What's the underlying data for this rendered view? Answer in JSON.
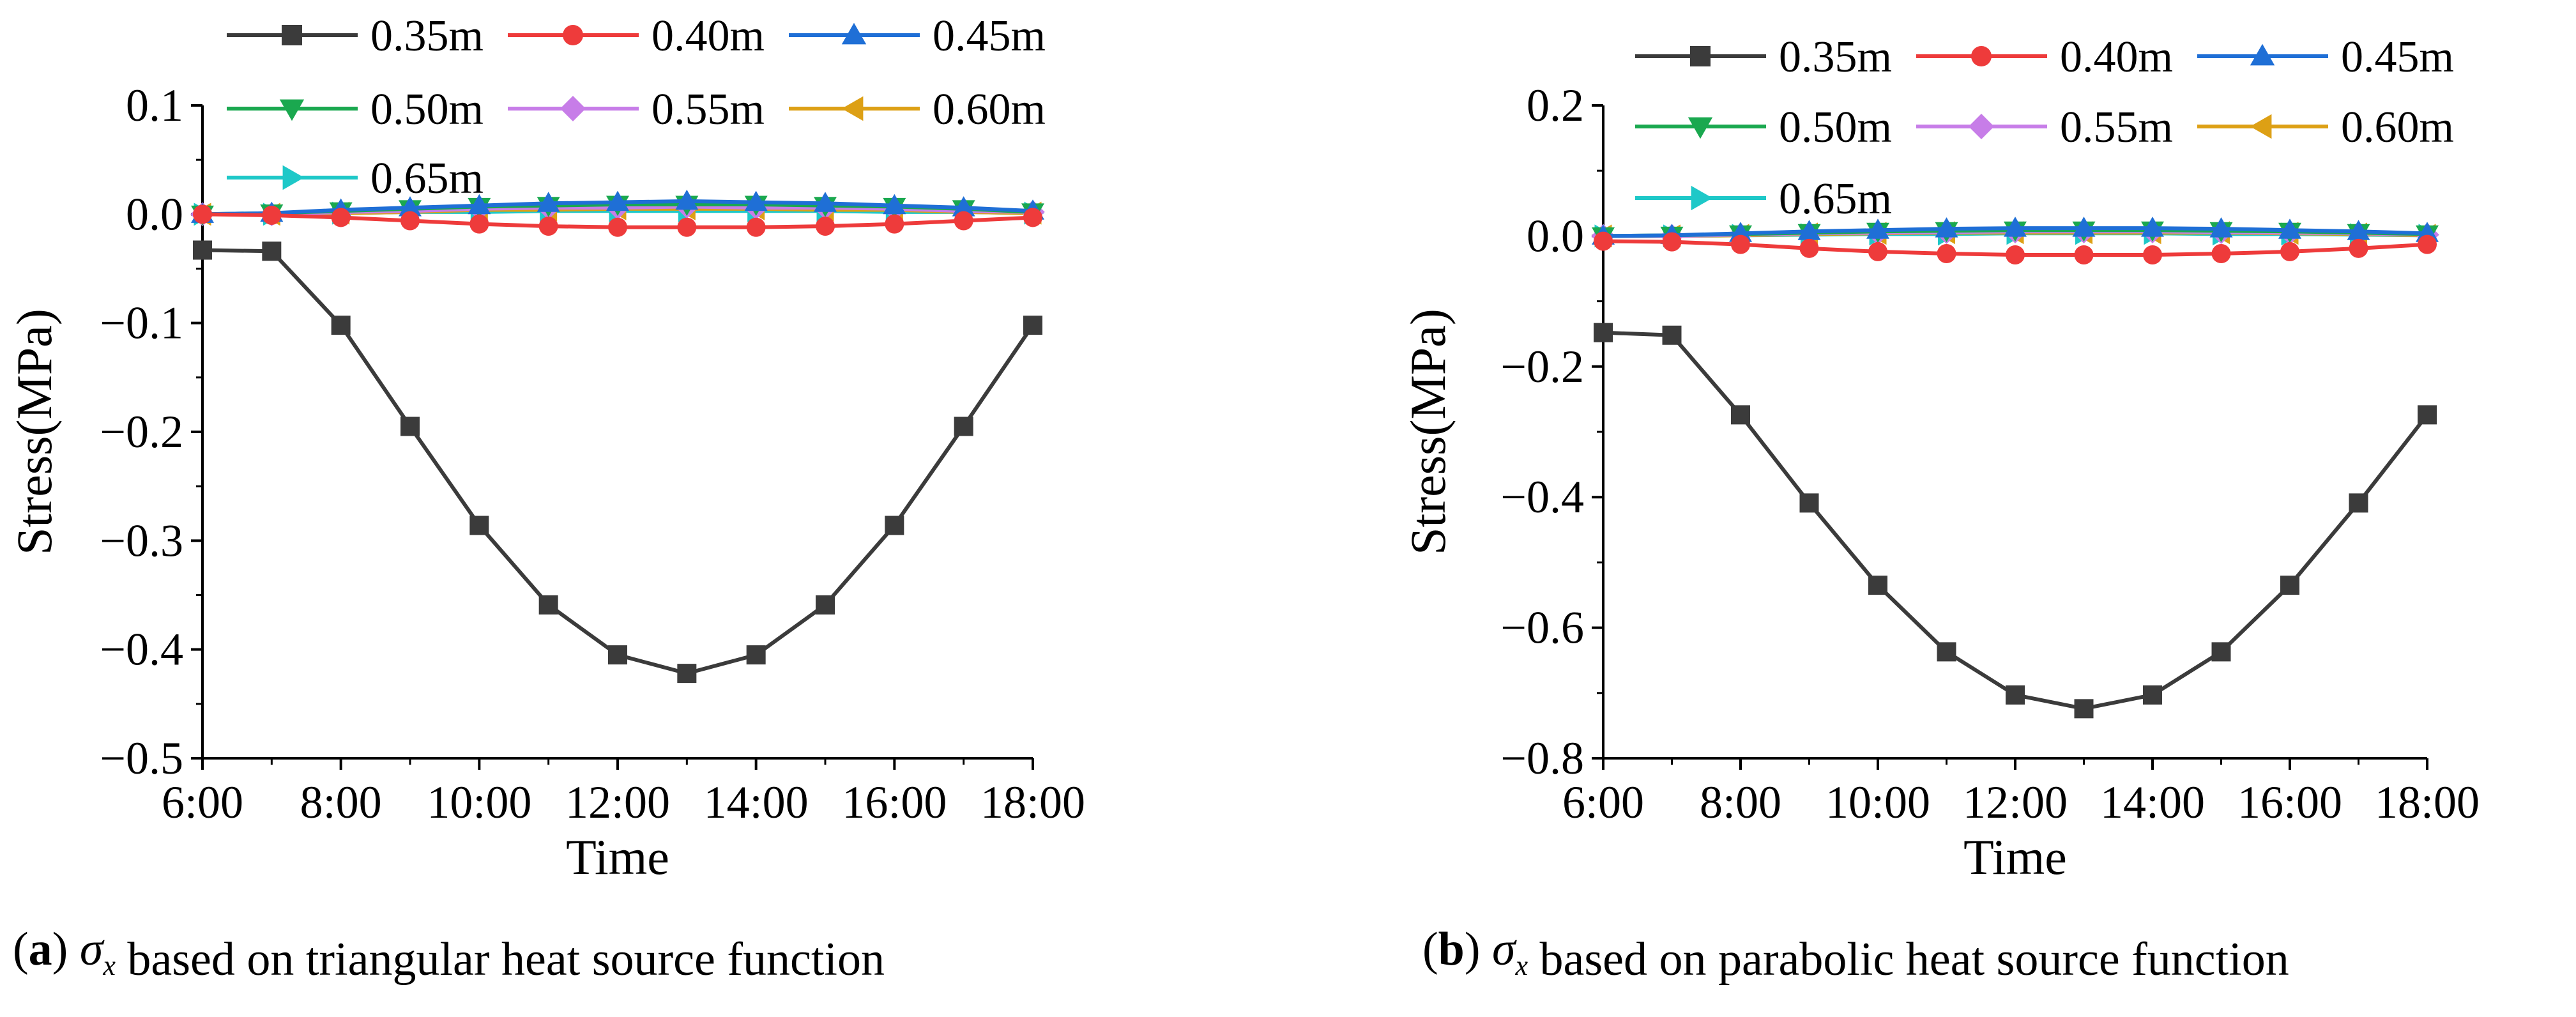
{
  "chart_data": [
    {
      "type": "line",
      "panel_id": "a",
      "caption": {
        "letter": "a",
        "symbol": "σ",
        "subscript": "x",
        "text": "based on triangular heat source function"
      },
      "xlabel": "Time",
      "ylabel": "Stress(MPa)",
      "x": [
        6,
        7,
        8,
        9,
        10,
        11,
        12,
        13,
        14,
        15,
        16,
        17,
        18
      ],
      "xticks": [
        6,
        8,
        10,
        12,
        14,
        16,
        18
      ],
      "xtick_labels": [
        "6:00",
        "8:00",
        "10:00",
        "12:00",
        "14:00",
        "16:00",
        "18:00"
      ],
      "xlim": [
        6,
        18
      ],
      "yticks": [
        0.1,
        0.0,
        -0.1,
        -0.2,
        -0.3,
        -0.4,
        -0.5
      ],
      "ytick_labels": [
        "0.1",
        "0.0",
        "−0.1",
        "−0.2",
        "−0.3",
        "−0.4",
        "−0.5"
      ],
      "ylim": [
        -0.5,
        0.1
      ],
      "series": [
        {
          "name": "0.35m",
          "color": "#3b3b3b",
          "marker": "square",
          "values": [
            -0.033,
            -0.034,
            -0.102,
            -0.195,
            -0.286,
            -0.359,
            -0.405,
            -0.422,
            -0.405,
            -0.359,
            -0.286,
            -0.195,
            -0.102
          ]
        },
        {
          "name": "0.40m",
          "color": "#ee3b3b",
          "marker": "circle",
          "values": [
            0.0,
            -0.001,
            -0.003,
            -0.006,
            -0.009,
            -0.011,
            -0.012,
            -0.012,
            -0.012,
            -0.011,
            -0.009,
            -0.006,
            -0.003
          ]
        },
        {
          "name": "0.45m",
          "color": "#1f6fd6",
          "marker": "triangle-up",
          "values": [
            0.0,
            0.001,
            0.004,
            0.006,
            0.008,
            0.01,
            0.011,
            0.012,
            0.011,
            0.01,
            0.008,
            0.006,
            0.003
          ]
        },
        {
          "name": "0.50m",
          "color": "#1aa84f",
          "marker": "triangle-down",
          "values": [
            0.0,
            0.001,
            0.003,
            0.005,
            0.007,
            0.008,
            0.009,
            0.009,
            0.009,
            0.008,
            0.007,
            0.005,
            0.002
          ]
        },
        {
          "name": "0.55m",
          "color": "#c77de8",
          "marker": "diamond",
          "values": [
            0.0,
            0.0,
            0.002,
            0.003,
            0.005,
            0.006,
            0.006,
            0.007,
            0.006,
            0.006,
            0.005,
            0.003,
            0.002
          ]
        },
        {
          "name": "0.60m",
          "color": "#dda015",
          "marker": "triangle-left",
          "values": [
            0.0,
            0.0,
            0.001,
            0.002,
            0.004,
            0.004,
            0.005,
            0.005,
            0.005,
            0.004,
            0.004,
            0.002,
            0.001
          ]
        },
        {
          "name": "0.65m",
          "color": "#1ec8c8",
          "marker": "triangle-right",
          "values": [
            0.0,
            0.0,
            0.001,
            0.002,
            0.002,
            0.003,
            0.003,
            0.003,
            0.003,
            0.003,
            0.002,
            0.002,
            0.001
          ]
        }
      ]
    },
    {
      "type": "line",
      "panel_id": "b",
      "caption": {
        "letter": "b",
        "symbol": "σ",
        "subscript": "x",
        "text": "based on parabolic heat source function"
      },
      "xlabel": "Time",
      "ylabel": "Stress(MPa)",
      "x": [
        6,
        7,
        8,
        9,
        10,
        11,
        12,
        13,
        14,
        15,
        16,
        17,
        18
      ],
      "xticks": [
        6,
        8,
        10,
        12,
        14,
        16,
        18
      ],
      "xtick_labels": [
        "6:00",
        "8:00",
        "10:00",
        "12:00",
        "14:00",
        "16:00",
        "18:00"
      ],
      "xlim": [
        6,
        18
      ],
      "yticks": [
        0.2,
        0.0,
        -0.2,
        -0.4,
        -0.6,
        -0.8
      ],
      "ytick_labels": [
        "0.2",
        "0.0",
        "−0.2",
        "−0.4",
        "−0.6",
        "−0.8"
      ],
      "ylim": [
        -0.8,
        0.2
      ],
      "series": [
        {
          "name": "0.35m",
          "color": "#3b3b3b",
          "marker": "square",
          "values": [
            -0.148,
            -0.152,
            -0.274,
            -0.409,
            -0.535,
            -0.637,
            -0.703,
            -0.724,
            -0.703,
            -0.637,
            -0.535,
            -0.409,
            -0.274
          ]
        },
        {
          "name": "0.40m",
          "color": "#ee3b3b",
          "marker": "circle",
          "values": [
            -0.008,
            -0.009,
            -0.013,
            -0.019,
            -0.024,
            -0.027,
            -0.029,
            -0.029,
            -0.029,
            -0.027,
            -0.024,
            -0.019,
            -0.013
          ]
        },
        {
          "name": "0.45m",
          "color": "#1f6fd6",
          "marker": "triangle-up",
          "values": [
            0.0,
            0.001,
            0.004,
            0.007,
            0.009,
            0.011,
            0.012,
            0.012,
            0.012,
            0.011,
            0.009,
            0.007,
            0.004
          ]
        },
        {
          "name": "0.50m",
          "color": "#1aa84f",
          "marker": "triangle-down",
          "values": [
            0.0,
            0.001,
            0.003,
            0.005,
            0.007,
            0.008,
            0.009,
            0.009,
            0.009,
            0.008,
            0.007,
            0.005,
            0.003
          ]
        },
        {
          "name": "0.55m",
          "color": "#c77de8",
          "marker": "diamond",
          "values": [
            0.0,
            0.0,
            0.002,
            0.004,
            0.005,
            0.006,
            0.007,
            0.007,
            0.007,
            0.006,
            0.005,
            0.004,
            0.002
          ]
        },
        {
          "name": "0.60m",
          "color": "#dda015",
          "marker": "triangle-left",
          "values": [
            0.0,
            0.0,
            0.001,
            0.003,
            0.004,
            0.005,
            0.005,
            0.005,
            0.005,
            0.005,
            0.004,
            0.003,
            0.001
          ]
        },
        {
          "name": "0.65m",
          "color": "#1ec8c8",
          "marker": "triangle-right",
          "values": [
            0.0,
            0.0,
            0.001,
            0.002,
            0.003,
            0.003,
            0.004,
            0.004,
            0.004,
            0.003,
            0.003,
            0.002,
            0.001
          ]
        }
      ]
    }
  ]
}
